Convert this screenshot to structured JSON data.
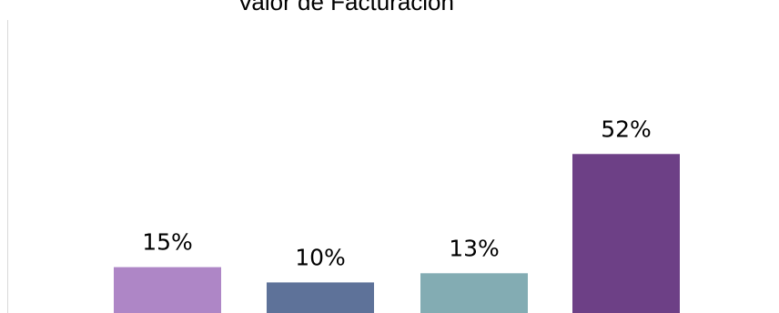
{
  "chart_data": {
    "type": "bar",
    "title": "Valor de Facturación",
    "categories": [
      "",
      "",
      "",
      ""
    ],
    "values": [
      15,
      10,
      13,
      52
    ],
    "data_labels": [
      "15%",
      "10%",
      "13%",
      "52%"
    ],
    "unit": "%",
    "colors": [
      "#AE86C6",
      "#5E7299",
      "#83ACB3",
      "#6D4086"
    ],
    "ylim": [
      0,
      100
    ],
    "grid": false,
    "legend": "none",
    "axis_line_color": "#D9D9D9"
  }
}
